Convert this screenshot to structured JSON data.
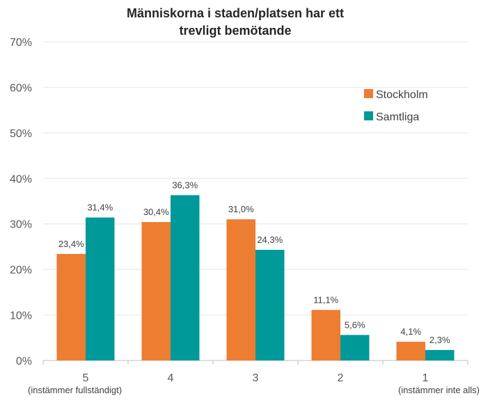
{
  "chart_data": {
    "type": "bar",
    "title": "Människorna i staden/platsen har ett trevligt bemötande",
    "title_lines": [
      "Människorna i staden/platsen har ett",
      "trevligt bemötande"
    ],
    "categories": [
      "5",
      "4",
      "3",
      "2",
      "1"
    ],
    "category_sublabels": [
      "(instämmer fullständigt)",
      "",
      "",
      "",
      "(instämmer inte alls)"
    ],
    "series": [
      {
        "name": "Stockholm",
        "color": "#ED7D31",
        "values": [
          23.4,
          30.4,
          31.0,
          11.1,
          4.1
        ],
        "labels": [
          "23,4%",
          "30,4%",
          "31,0%",
          "11,1%",
          "4,1%"
        ]
      },
      {
        "name": "Samtliga",
        "color": "#009999",
        "values": [
          31.4,
          36.3,
          24.3,
          5.6,
          2.3
        ],
        "labels": [
          "31,4%",
          "36,3%",
          "24,3%",
          "5,6%",
          "2,3%"
        ]
      }
    ],
    "ylim": [
      0,
      70
    ],
    "yticks": [
      "0%",
      "10%",
      "20%",
      "30%",
      "40%",
      "50%",
      "60%",
      "70%"
    ],
    "xlabel": "",
    "ylabel": "",
    "grid": true,
    "legend_position": "top-right"
  }
}
